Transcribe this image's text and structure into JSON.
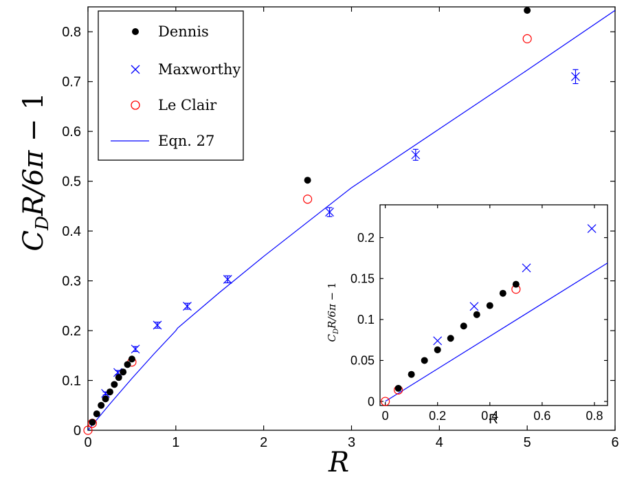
{
  "chart_data": [
    {
      "type": "scatter",
      "ylabel": "C_D R/6π − 1",
      "xlabel": "R",
      "xlim": [
        0,
        6
      ],
      "ylim": [
        0,
        0.85
      ],
      "xticks": [
        "0",
        "1",
        "2",
        "3",
        "4",
        "5",
        "6"
      ],
      "yticks": [
        "0",
        "0.1",
        "0.2",
        "0.3",
        "0.4",
        "0.5",
        "0.6",
        "0.7",
        "0.8"
      ],
      "legend_position": "top-left",
      "series": [
        {
          "name": "Dennis",
          "marker": "filled-circle",
          "color": "#000000",
          "x": [
            0.05,
            0.1,
            0.15,
            0.2,
            0.25,
            0.3,
            0.35,
            0.4,
            0.45,
            0.5,
            2.5,
            5.0
          ],
          "y": [
            0.016,
            0.033,
            0.05,
            0.063,
            0.077,
            0.092,
            0.106,
            0.117,
            0.132,
            0.143,
            0.502,
            0.843
          ]
        },
        {
          "name": "Maxworthy",
          "marker": "x-errorbar",
          "color": "#0000ff",
          "x": [
            0.2,
            0.34,
            0.54,
            0.79,
            1.13,
            1.59,
            2.75,
            3.73,
            5.55
          ],
          "y": [
            0.074,
            0.116,
            0.163,
            0.211,
            0.249,
            0.303,
            0.438,
            0.553,
            0.71
          ],
          "err": [
            0.003,
            0.004,
            0.005,
            0.006,
            0.006,
            0.007,
            0.009,
            0.011,
            0.014
          ]
        },
        {
          "name": "Le Clair",
          "marker": "open-circle",
          "color": "#ff0000",
          "x": [
            0.0,
            0.05,
            0.5,
            2.5,
            5.0
          ],
          "y": [
            0.0,
            0.014,
            0.137,
            0.464,
            0.786
          ]
        },
        {
          "name": "Eqn. 27",
          "marker": "line",
          "color": "#0000ff",
          "x": [
            0.0,
            0.25,
            0.5,
            0.75,
            1.0,
            1.02,
            1.5,
            2.0,
            3.0,
            4.0,
            5.0,
            6.0
          ],
          "y": [
            0.0,
            0.053,
            0.104,
            0.153,
            0.2,
            0.205,
            0.277,
            0.349,
            0.487,
            0.605,
            0.723,
            0.843
          ]
        }
      ]
    },
    {
      "type": "scatter",
      "inset": true,
      "ylabel": "C_D R/6π − 1",
      "xlabel": "R",
      "xlim": [
        -0.02,
        0.85
      ],
      "ylim": [
        -0.005,
        0.24
      ],
      "xticks": [
        "0",
        "0.2",
        "0.4",
        "0.6",
        "0.8"
      ],
      "yticks": [
        "0",
        "0.05",
        "0.1",
        "0.15",
        "0.2"
      ],
      "series": [
        {
          "name": "Dennis",
          "marker": "filled-circle",
          "color": "#000000",
          "x": [
            0.05,
            0.1,
            0.15,
            0.2,
            0.25,
            0.3,
            0.35,
            0.4,
            0.45,
            0.5
          ],
          "y": [
            0.016,
            0.033,
            0.05,
            0.063,
            0.077,
            0.092,
            0.106,
            0.117,
            0.132,
            0.143
          ]
        },
        {
          "name": "Maxworthy",
          "marker": "x",
          "color": "#0000ff",
          "x": [
            0.2,
            0.34,
            0.54,
            0.79
          ],
          "y": [
            0.074,
            0.116,
            0.163,
            0.211
          ]
        },
        {
          "name": "Le Clair",
          "marker": "open-circle",
          "color": "#ff0000",
          "x": [
            0.0,
            0.05,
            0.5
          ],
          "y": [
            0.0,
            0.014,
            0.137
          ]
        },
        {
          "name": "Eqn. 27",
          "marker": "line",
          "color": "#0000ff",
          "x": [
            0.0,
            0.85
          ],
          "y": [
            0.0,
            0.169
          ]
        }
      ]
    }
  ]
}
